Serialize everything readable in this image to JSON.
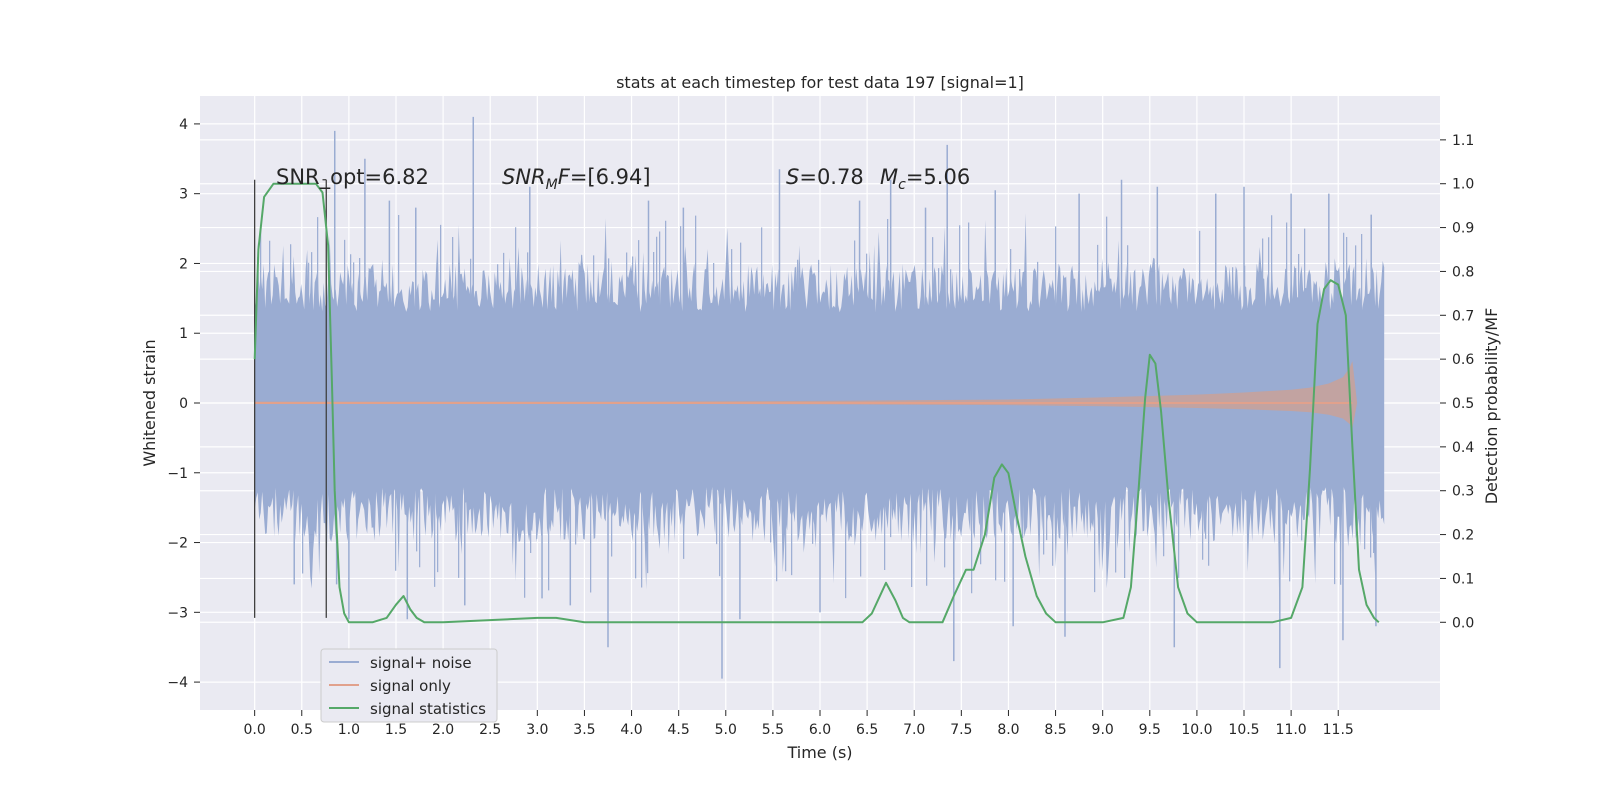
{
  "chart_data": {
    "type": "line",
    "title": "stats at each timestep for test data 197 [signal=1]",
    "xlabel": "Time (s)",
    "ylabel_left": "Whitened strain",
    "ylabel_right": "Detection probability/MF",
    "xlim": [
      -0.58,
      12.58
    ],
    "ylim_left": [
      -4.4,
      4.4
    ],
    "ylim_right": [
      -0.2,
      1.2
    ],
    "x_ticks": [
      "0.0",
      "0.5",
      "1.0",
      "1.5",
      "2.0",
      "2.5",
      "3.0",
      "3.5",
      "4.0",
      "4.5",
      "5.0",
      "5.5",
      "6.0",
      "6.5",
      "7.0",
      "7.5",
      "8.0",
      "8.5",
      "9.0",
      "9.5",
      "10.0",
      "10.5",
      "11.0",
      "11.5"
    ],
    "y_ticks_left": [
      "4",
      "3",
      "2",
      "1",
      "0",
      "−1",
      "−2",
      "−3",
      "−4"
    ],
    "y_ticks_right": [
      "1.1",
      "1.0",
      "0.9",
      "0.8",
      "0.7",
      "0.6",
      "0.5",
      "0.4",
      "0.3",
      "0.2",
      "0.1",
      "0.0"
    ],
    "grid": true,
    "legend_position": "lower-left",
    "legend": [
      "signal+ noise",
      "signal only",
      "signal statistics"
    ],
    "annotations": {
      "snr_opt": "SNR_opt=6.82",
      "snr_mf_sym": "SNR",
      "snr_mf_sub": "M",
      "snr_mf_f": "F",
      "snr_mf_val": "=[6.94]",
      "s_sym": "S",
      "s_val": "=0.78",
      "mc_sym": "M",
      "mc_sub": "c",
      "mc_val": "=5.06"
    },
    "markers": [
      {
        "x": 0.0,
        "y_top": 3.2,
        "y_bottom": -3.08
      },
      {
        "x": 0.76,
        "y_top": 3.2,
        "y_bottom": -3.08
      }
    ],
    "noise": {
      "x_start": 0.0,
      "x_end": 12.0,
      "typical_range": [
        -2.0,
        2.0
      ],
      "spikes": [
        {
          "x": 0.85,
          "y": 3.9
        },
        {
          "x": 0.87,
          "y": -2.6
        },
        {
          "x": 1.17,
          "y": 3.5
        },
        {
          "x": 1.43,
          "y": 2.9
        },
        {
          "x": 1.62,
          "y": -3.1
        },
        {
          "x": 1.71,
          "y": 2.8
        },
        {
          "x": 2.32,
          "y": 4.1
        },
        {
          "x": 2.23,
          "y": -2.9
        },
        {
          "x": 2.92,
          "y": 3.1
        },
        {
          "x": 3.35,
          "y": -2.9
        },
        {
          "x": 3.75,
          "y": -3.5
        },
        {
          "x": 4.18,
          "y": 2.9
        },
        {
          "x": 4.55,
          "y": 2.8
        },
        {
          "x": 4.96,
          "y": -3.95
        },
        {
          "x": 5.15,
          "y": -3.1
        },
        {
          "x": 5.57,
          "y": 3.35
        },
        {
          "x": 6.0,
          "y": -3.0
        },
        {
          "x": 6.42,
          "y": 2.9
        },
        {
          "x": 6.75,
          "y": 3.2
        },
        {
          "x": 7.12,
          "y": 2.8
        },
        {
          "x": 7.35,
          "y": 3.7
        },
        {
          "x": 7.42,
          "y": -3.7
        },
        {
          "x": 7.86,
          "y": 3.05
        },
        {
          "x": 8.05,
          "y": -3.2
        },
        {
          "x": 8.6,
          "y": -3.35
        },
        {
          "x": 8.75,
          "y": 3.0
        },
        {
          "x": 9.2,
          "y": 3.2
        },
        {
          "x": 9.58,
          "y": 3.1
        },
        {
          "x": 9.76,
          "y": -3.5
        },
        {
          "x": 10.2,
          "y": 3.0
        },
        {
          "x": 10.5,
          "y": 3.1
        },
        {
          "x": 10.88,
          "y": -3.8
        },
        {
          "x": 11.0,
          "y": 3.0
        },
        {
          "x": 11.4,
          "y": 3.0
        },
        {
          "x": 11.55,
          "y": -3.4
        },
        {
          "x": 11.85,
          "y": 2.7
        },
        {
          "x": 11.9,
          "y": -3.2
        },
        {
          "x": 1.0,
          "y": -3.1
        },
        {
          "x": 0.42,
          "y": -2.6
        },
        {
          "x": 3.05,
          "y": -2.8
        }
      ]
    },
    "signal_only": {
      "x": [
        0.0,
        4.0,
        6.0,
        8.0,
        9.0,
        10.0,
        10.5,
        11.0,
        11.2,
        11.4,
        11.55,
        11.62,
        11.65,
        11.7
      ],
      "amplitude": [
        0.02,
        0.02,
        0.03,
        0.05,
        0.08,
        0.12,
        0.15,
        0.19,
        0.22,
        0.28,
        0.37,
        0.5,
        0.6,
        0.0
      ]
    },
    "signal_statistics": {
      "x": [
        0.0,
        0.04,
        0.1,
        0.2,
        0.3,
        0.5,
        0.65,
        0.72,
        0.78,
        0.82,
        0.85,
        0.9,
        0.95,
        1.0,
        1.05,
        1.12,
        1.25,
        1.4,
        1.5,
        1.58,
        1.65,
        1.72,
        1.8,
        2.0,
        3.0,
        3.2,
        3.5,
        4.0,
        5.0,
        6.0,
        6.45,
        6.55,
        6.7,
        6.8,
        6.88,
        6.95,
        7.1,
        7.3,
        7.42,
        7.55,
        7.63,
        7.75,
        7.85,
        7.93,
        8.0,
        8.08,
        8.18,
        8.3,
        8.4,
        8.5,
        8.6,
        9.0,
        9.22,
        9.3,
        9.38,
        9.45,
        9.5,
        9.56,
        9.62,
        9.7,
        9.8,
        9.9,
        10.0,
        10.2,
        10.8,
        11.0,
        11.12,
        11.2,
        11.28,
        11.35,
        11.42,
        11.5,
        11.58,
        11.65,
        11.72,
        11.8,
        11.88,
        11.93
      ],
      "y": [
        0.6,
        0.85,
        0.97,
        1.0,
        1.0,
        1.0,
        1.0,
        0.98,
        0.86,
        0.55,
        0.3,
        0.08,
        0.02,
        0.0,
        0.0,
        0.0,
        0.0,
        0.01,
        0.04,
        0.06,
        0.03,
        0.01,
        0.0,
        0.0,
        0.01,
        0.01,
        0.0,
        0.0,
        0.0,
        0.0,
        0.0,
        0.02,
        0.09,
        0.05,
        0.01,
        0.0,
        0.0,
        0.0,
        0.06,
        0.12,
        0.12,
        0.2,
        0.33,
        0.36,
        0.34,
        0.25,
        0.15,
        0.06,
        0.02,
        0.0,
        0.0,
        0.0,
        0.01,
        0.08,
        0.3,
        0.51,
        0.61,
        0.59,
        0.48,
        0.28,
        0.08,
        0.02,
        0.0,
        0.0,
        0.0,
        0.01,
        0.08,
        0.35,
        0.68,
        0.76,
        0.78,
        0.77,
        0.7,
        0.4,
        0.12,
        0.04,
        0.01,
        0.0
      ]
    },
    "colors": {
      "background": "#EAEAF2",
      "grid": "#FFFFFF",
      "noise": "#9AACD2",
      "signal_only": "#E1A18C",
      "signal_band": "#C9A199",
      "statistics": "#55A868",
      "marker": "#404040",
      "text": "#262626"
    }
  }
}
